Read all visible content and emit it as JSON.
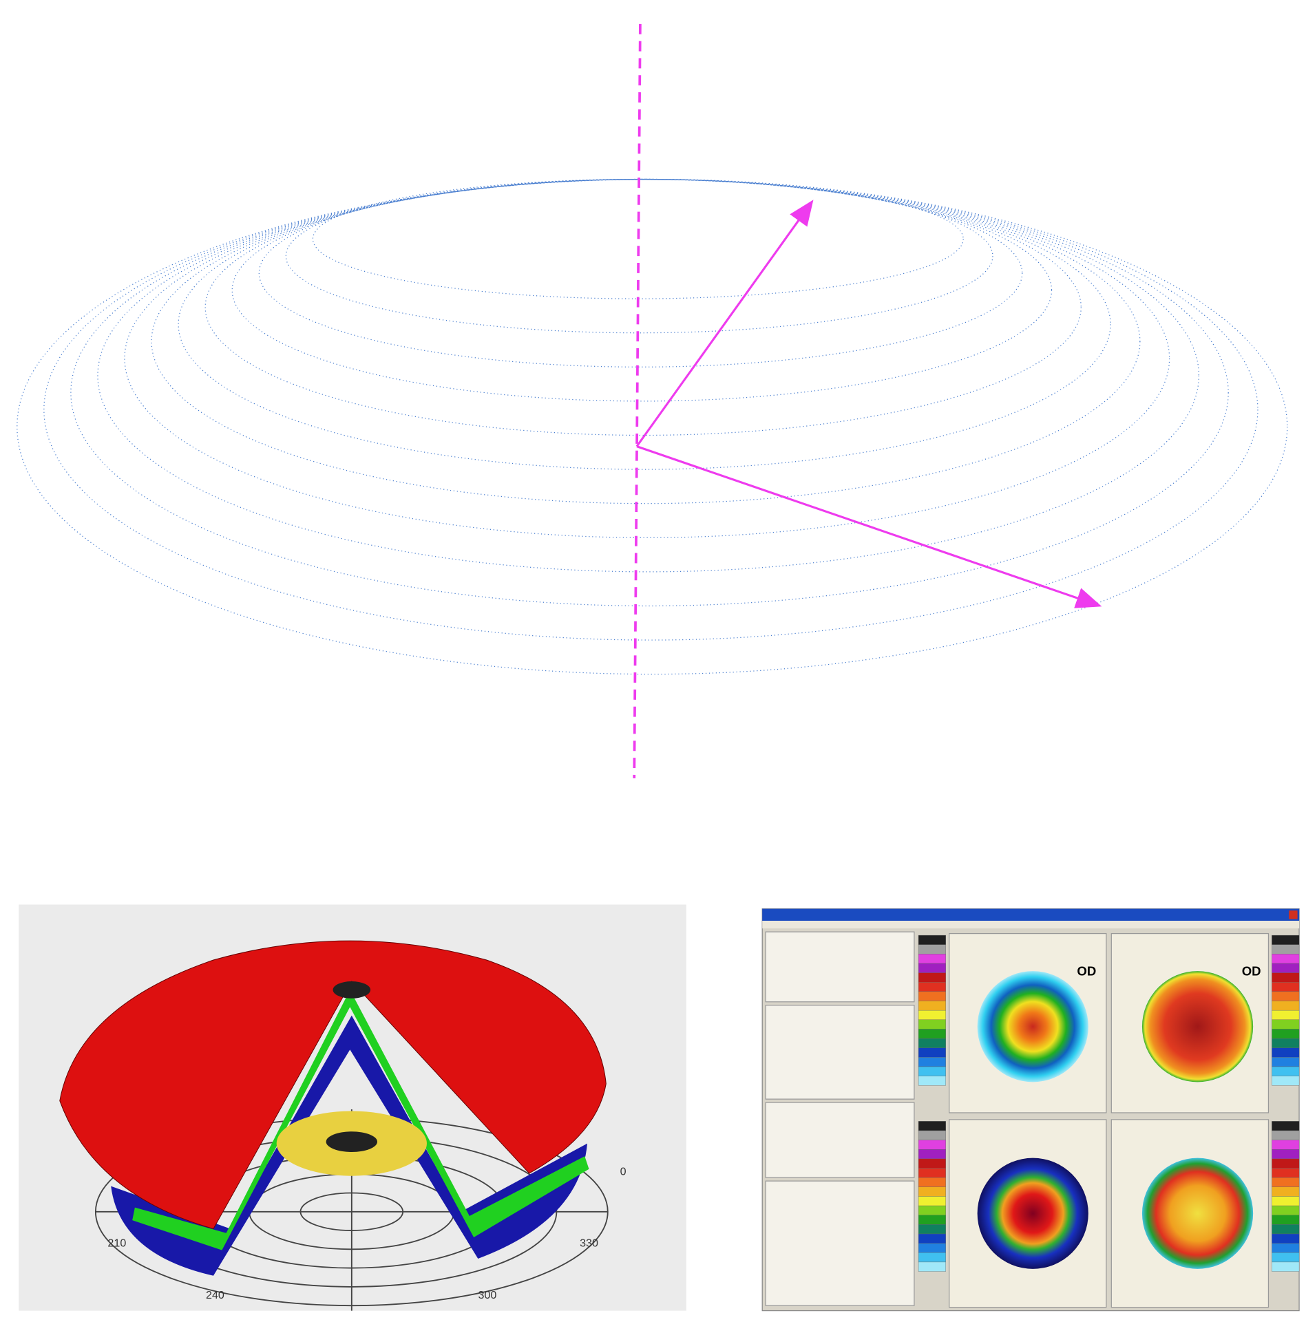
{
  "polar_plot": {
    "angle_labels": [
      "0",
      "210",
      "330",
      "240",
      "300"
    ]
  },
  "software_screenshot": {
    "map_eye_labels": [
      "OD",
      "OD"
    ]
  }
}
